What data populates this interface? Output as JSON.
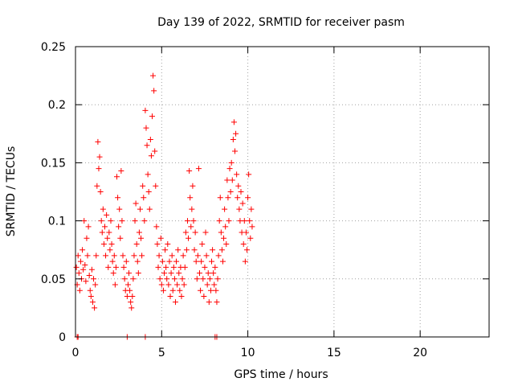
{
  "chart_data": {
    "type": "scatter",
    "title": "Day 139 of 2022, SRMTID for receiver pasm",
    "xlabel": "GPS time / hours",
    "ylabel": "SRMTID / TECUs",
    "xlim": [
      0,
      24
    ],
    "ylim": [
      0,
      0.25
    ],
    "x_ticks": [
      0,
      5,
      10,
      15,
      20
    ],
    "x_tick_labels": [
      "0",
      "5",
      "10",
      "15",
      "20"
    ],
    "y_ticks": [
      0,
      0.05,
      0.1,
      0.15,
      0.2,
      0.25
    ],
    "y_tick_labels": [
      "0",
      "0.05",
      "0.1",
      "0.15",
      "0.2",
      "0.25"
    ],
    "grid": true,
    "marker": "+",
    "series": [
      {
        "color": "#ff0000",
        "points": [
          [
            0.05,
            0.06
          ],
          [
            0.1,
            0.045
          ],
          [
            0.15,
            0.07
          ],
          [
            0.2,
            0.055
          ],
          [
            0.25,
            0.04
          ],
          [
            0.3,
            0.065
          ],
          [
            0.35,
            0.05
          ],
          [
            0.4,
            0.075
          ],
          [
            0.45,
            0.058
          ],
          [
            0.5,
            0.1
          ],
          [
            0.55,
            0.062
          ],
          [
            0.6,
            0.048
          ],
          [
            0.65,
            0.085
          ],
          [
            0.7,
            0.07
          ],
          [
            0.75,
            0.095
          ],
          [
            0.8,
            0.053
          ],
          [
            0.85,
            0.04
          ],
          [
            0.9,
            0.035
          ],
          [
            0.95,
            0.058
          ],
          [
            1.0,
            0.03
          ],
          [
            1.05,
            0.05
          ],
          [
            1.1,
            0.025
          ],
          [
            1.15,
            0.045
          ],
          [
            1.2,
            0.07
          ],
          [
            1.25,
            0.13
          ],
          [
            1.3,
            0.168
          ],
          [
            1.35,
            0.145
          ],
          [
            1.4,
            0.155
          ],
          [
            1.45,
            0.125
          ],
          [
            1.5,
            0.1
          ],
          [
            1.55,
            0.09
          ],
          [
            1.6,
            0.11
          ],
          [
            1.65,
            0.08
          ],
          [
            1.7,
            0.095
          ],
          [
            1.75,
            0.07
          ],
          [
            1.8,
            0.105
          ],
          [
            1.85,
            0.085
          ],
          [
            1.9,
            0.06
          ],
          [
            1.95,
            0.09
          ],
          [
            2.0,
            0.075
          ],
          [
            2.05,
            0.1
          ],
          [
            2.1,
            0.08
          ],
          [
            2.15,
            0.065
          ],
          [
            2.2,
            0.055
          ],
          [
            2.25,
            0.07
          ],
          [
            2.3,
            0.045
          ],
          [
            2.35,
            0.06
          ],
          [
            2.4,
            0.138
          ],
          [
            2.45,
            0.12
          ],
          [
            2.5,
            0.095
          ],
          [
            2.55,
            0.11
          ],
          [
            2.6,
            0.085
          ],
          [
            2.65,
            0.143
          ],
          [
            2.7,
            0.1
          ],
          [
            2.75,
            0.07
          ],
          [
            2.8,
            0.06
          ],
          [
            2.85,
            0.05
          ],
          [
            2.9,
            0.04
          ],
          [
            2.95,
            0.065
          ],
          [
            3.0,
            0.035
          ],
          [
            3.05,
            0.045
          ],
          [
            3.1,
            0.055
          ],
          [
            3.15,
            0.04
          ],
          [
            3.2,
            0.03
          ],
          [
            3.25,
            0.025
          ],
          [
            3.3,
            0.035
          ],
          [
            3.35,
            0.05
          ],
          [
            3.4,
            0.07
          ],
          [
            3.45,
            0.1
          ],
          [
            3.5,
            0.115
          ],
          [
            3.55,
            0.08
          ],
          [
            3.6,
            0.065
          ],
          [
            3.65,
            0.055
          ],
          [
            3.7,
            0.09
          ],
          [
            3.75,
            0.11
          ],
          [
            3.8,
            0.085
          ],
          [
            3.85,
            0.07
          ],
          [
            3.9,
            0.13
          ],
          [
            3.95,
            0.12
          ],
          [
            4.0,
            0.1
          ],
          [
            4.05,
            0.195
          ],
          [
            4.1,
            0.18
          ],
          [
            4.15,
            0.165
          ],
          [
            4.2,
            0.14
          ],
          [
            4.25,
            0.125
          ],
          [
            4.3,
            0.11
          ],
          [
            4.35,
            0.17
          ],
          [
            4.4,
            0.156
          ],
          [
            4.45,
            0.19
          ],
          [
            4.5,
            0.225
          ],
          [
            4.55,
            0.212
          ],
          [
            4.6,
            0.16
          ],
          [
            4.65,
            0.13
          ],
          [
            4.7,
            0.095
          ],
          [
            4.75,
            0.08
          ],
          [
            4.8,
            0.06
          ],
          [
            4.85,
            0.07
          ],
          [
            4.9,
            0.05
          ],
          [
            4.95,
            0.085
          ],
          [
            5.0,
            0.045
          ],
          [
            5.05,
            0.065
          ],
          [
            5.1,
            0.04
          ],
          [
            5.15,
            0.055
          ],
          [
            5.2,
            0.075
          ],
          [
            5.25,
            0.06
          ],
          [
            5.3,
            0.05
          ],
          [
            5.35,
            0.08
          ],
          [
            5.4,
            0.045
          ],
          [
            5.45,
            0.065
          ],
          [
            5.5,
            0.035
          ],
          [
            5.55,
            0.055
          ],
          [
            5.6,
            0.07
          ],
          [
            5.65,
            0.04
          ],
          [
            5.7,
            0.06
          ],
          [
            5.75,
            0.05
          ],
          [
            5.8,
            0.03
          ],
          [
            5.85,
            0.065
          ],
          [
            5.9,
            0.045
          ],
          [
            5.95,
            0.075
          ],
          [
            6.0,
            0.055
          ],
          [
            6.05,
            0.04
          ],
          [
            6.1,
            0.06
          ],
          [
            6.15,
            0.035
          ],
          [
            6.2,
            0.05
          ],
          [
            6.25,
            0.07
          ],
          [
            6.3,
            0.045
          ],
          [
            6.35,
            0.06
          ],
          [
            6.4,
            0.09
          ],
          [
            6.45,
            0.075
          ],
          [
            6.5,
            0.1
          ],
          [
            6.55,
            0.085
          ],
          [
            6.6,
            0.143
          ],
          [
            6.65,
            0.12
          ],
          [
            6.7,
            0.095
          ],
          [
            6.75,
            0.11
          ],
          [
            6.8,
            0.13
          ],
          [
            6.85,
            0.1
          ],
          [
            6.9,
            0.075
          ],
          [
            6.95,
            0.09
          ],
          [
            7.0,
            0.065
          ],
          [
            7.05,
            0.05
          ],
          [
            7.1,
            0.07
          ],
          [
            7.15,
            0.145
          ],
          [
            7.2,
            0.055
          ],
          [
            7.25,
            0.04
          ],
          [
            7.3,
            0.065
          ],
          [
            7.35,
            0.08
          ],
          [
            7.4,
            0.05
          ],
          [
            7.45,
            0.035
          ],
          [
            7.5,
            0.06
          ],
          [
            7.55,
            0.09
          ],
          [
            7.6,
            0.07
          ],
          [
            7.65,
            0.045
          ],
          [
            7.7,
            0.055
          ],
          [
            7.75,
            0.03
          ],
          [
            7.8,
            0.05
          ],
          [
            7.85,
            0.04
          ],
          [
            7.9,
            0.065
          ],
          [
            7.95,
            0.075
          ],
          [
            8.0,
            0.055
          ],
          [
            8.05,
            0.045
          ],
          [
            8.1,
            0.06
          ],
          [
            8.15,
            0.04
          ],
          [
            8.2,
            0.03
          ],
          [
            8.25,
            0.05
          ],
          [
            8.3,
            0.07
          ],
          [
            8.35,
            0.1
          ],
          [
            8.4,
            0.12
          ],
          [
            8.45,
            0.09
          ],
          [
            8.5,
            0.075
          ],
          [
            8.55,
            0.065
          ],
          [
            8.6,
            0.085
          ],
          [
            8.65,
            0.11
          ],
          [
            8.7,
            0.095
          ],
          [
            8.75,
            0.08
          ],
          [
            8.8,
            0.135
          ],
          [
            8.85,
            0.12
          ],
          [
            8.9,
            0.1
          ],
          [
            8.95,
            0.145
          ],
          [
            9.0,
            0.125
          ],
          [
            9.05,
            0.15
          ],
          [
            9.1,
            0.135
          ],
          [
            9.15,
            0.17
          ],
          [
            9.2,
            0.185
          ],
          [
            9.25,
            0.16
          ],
          [
            9.3,
            0.175
          ],
          [
            9.35,
            0.14
          ],
          [
            9.4,
            0.12
          ],
          [
            9.45,
            0.13
          ],
          [
            9.5,
            0.11
          ],
          [
            9.55,
            0.1
          ],
          [
            9.6,
            0.125
          ],
          [
            9.65,
            0.09
          ],
          [
            9.7,
            0.115
          ],
          [
            9.75,
            0.08
          ],
          [
            9.8,
            0.1
          ],
          [
            9.85,
            0.065
          ],
          [
            9.9,
            0.09
          ],
          [
            9.95,
            0.075
          ],
          [
            10.0,
            0.12
          ],
          [
            10.05,
            0.14
          ],
          [
            10.1,
            0.1
          ],
          [
            10.15,
            0.085
          ],
          [
            10.2,
            0.11
          ],
          [
            10.25,
            0.095
          ]
        ]
      }
    ],
    "baseline_markers": [
      0.1,
      0.15,
      3.0,
      4.05,
      8.1,
      8.2
    ]
  }
}
